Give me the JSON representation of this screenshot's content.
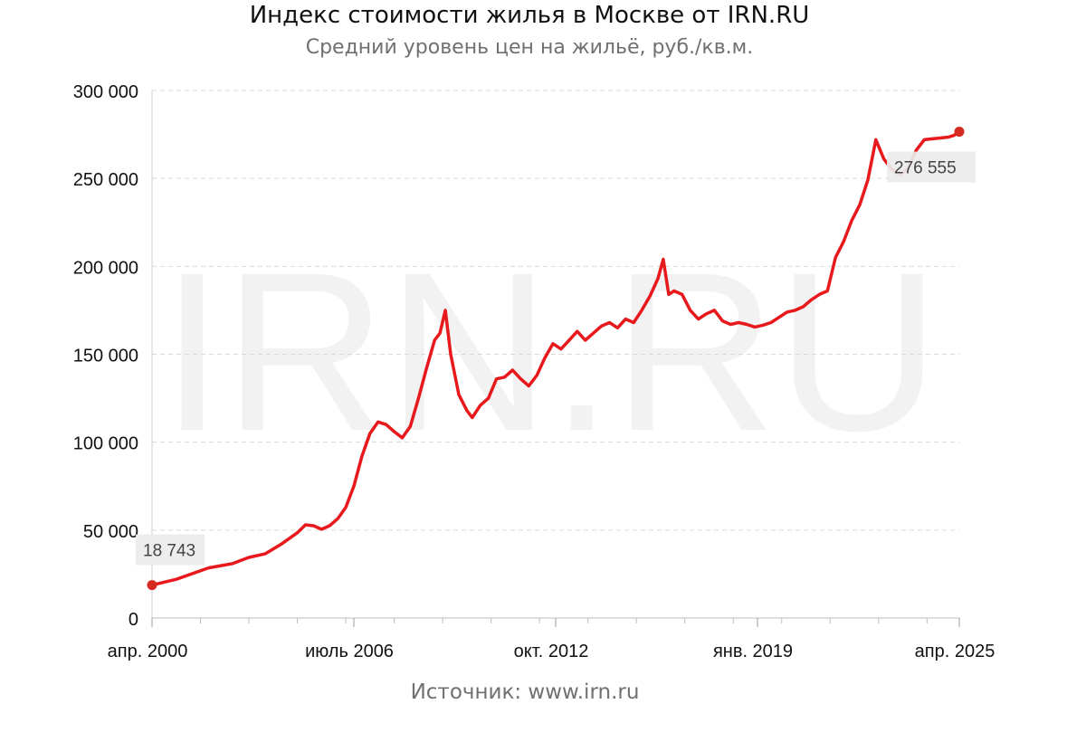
{
  "chart_data": {
    "type": "line",
    "title": "Индекс стоимости жилья в Москве от IRN.RU",
    "subtitle": "Средний уровень цен на жильё, руб./кв.м.",
    "source": "Источник: www.irn.ru",
    "watermark": "IRN.RU",
    "xlabel": "",
    "ylabel": "",
    "x_ticks": [
      "апр. 2000",
      "июль 2006",
      "окт. 2012",
      "янв. 2019",
      "апр. 2025"
    ],
    "x_range": [
      "2000-04",
      "2025-04"
    ],
    "y_ticks": [
      "0",
      "50 000",
      "100 000",
      "150 000",
      "200 000",
      "250 000",
      "300 000"
    ],
    "ylim": [
      0,
      300000
    ],
    "grid": "horizontal dashed",
    "legend": "none",
    "color": "#e8191c",
    "endpoint_color": "#d42a22",
    "data_labels": [
      {
        "x": "2000-04",
        "y": 18743,
        "text": "18 743"
      },
      {
        "x": "2025-04",
        "y": 276555,
        "text": "276 555"
      }
    ],
    "series": [
      {
        "points": [
          [
            "2000-04",
            18743
          ],
          [
            "2001-01",
            22000
          ],
          [
            "2002-01",
            28500
          ],
          [
            "2002-10",
            31000
          ],
          [
            "2003-04",
            34500
          ],
          [
            "2003-10",
            36500
          ],
          [
            "2004-04",
            42000
          ],
          [
            "2004-10",
            48500
          ],
          [
            "2005-01",
            53000
          ],
          [
            "2005-04",
            52500
          ],
          [
            "2005-07",
            50500
          ],
          [
            "2005-10",
            52500
          ],
          [
            "2006-01",
            56500
          ],
          [
            "2006-04",
            63000
          ],
          [
            "2006-07",
            75000
          ],
          [
            "2006-10",
            92000
          ],
          [
            "2007-01",
            105000
          ],
          [
            "2007-04",
            111500
          ],
          [
            "2007-07",
            110000
          ],
          [
            "2007-10",
            106000
          ],
          [
            "2008-01",
            102500
          ],
          [
            "2008-04",
            109000
          ],
          [
            "2008-07",
            125000
          ],
          [
            "2008-10",
            142000
          ],
          [
            "2009-01",
            158000
          ],
          [
            "2009-03",
            162000
          ],
          [
            "2009-05",
            175000
          ],
          [
            "2009-07",
            150000
          ],
          [
            "2009-10",
            127000
          ],
          [
            "2010-01",
            118000
          ],
          [
            "2010-03",
            114000
          ],
          [
            "2010-06",
            121000
          ],
          [
            "2010-09",
            125000
          ],
          [
            "2010-12",
            136000
          ],
          [
            "2011-03",
            137000
          ],
          [
            "2011-06",
            141000
          ],
          [
            "2011-09",
            136000
          ],
          [
            "2011-12",
            132000
          ],
          [
            "2012-03",
            138000
          ],
          [
            "2012-06",
            148000
          ],
          [
            "2012-09",
            156000
          ],
          [
            "2012-12",
            153000
          ],
          [
            "2013-03",
            158000
          ],
          [
            "2013-06",
            163000
          ],
          [
            "2013-09",
            158000
          ],
          [
            "2013-12",
            162000
          ],
          [
            "2014-03",
            166000
          ],
          [
            "2014-06",
            168000
          ],
          [
            "2014-09",
            165000
          ],
          [
            "2014-12",
            170000
          ],
          [
            "2015-03",
            168000
          ],
          [
            "2015-06",
            175000
          ],
          [
            "2015-09",
            183000
          ],
          [
            "2015-12",
            193000
          ],
          [
            "2016-02",
            204000
          ],
          [
            "2016-04",
            184000
          ],
          [
            "2016-06",
            186000
          ],
          [
            "2016-09",
            184000
          ],
          [
            "2016-12",
            175000
          ],
          [
            "2017-03",
            170000
          ],
          [
            "2017-06",
            173000
          ],
          [
            "2017-09",
            175000
          ],
          [
            "2017-12",
            169000
          ],
          [
            "2018-03",
            167000
          ],
          [
            "2018-06",
            168000
          ],
          [
            "2018-09",
            167000
          ],
          [
            "2018-12",
            165500
          ],
          [
            "2019-03",
            166500
          ],
          [
            "2019-06",
            168000
          ],
          [
            "2019-09",
            171000
          ],
          [
            "2019-12",
            174000
          ],
          [
            "2020-03",
            175000
          ],
          [
            "2020-06",
            177000
          ],
          [
            "2020-09",
            181000
          ],
          [
            "2020-12",
            184000
          ],
          [
            "2021-03",
            186000
          ],
          [
            "2021-06",
            205000
          ],
          [
            "2021-09",
            214000
          ],
          [
            "2021-12",
            226000
          ],
          [
            "2022-03",
            235000
          ],
          [
            "2022-06",
            249000
          ],
          [
            "2022-09",
            272000
          ],
          [
            "2022-12",
            261000
          ],
          [
            "2023-03",
            255000
          ],
          [
            "2023-06",
            252000
          ],
          [
            "2023-09",
            256000
          ],
          [
            "2023-12",
            266000
          ],
          [
            "2024-03",
            272000
          ],
          [
            "2024-06",
            272500
          ],
          [
            "2024-09",
            273000
          ],
          [
            "2024-12",
            273500
          ],
          [
            "2025-02",
            274500
          ],
          [
            "2025-04",
            276555
          ]
        ]
      }
    ]
  }
}
